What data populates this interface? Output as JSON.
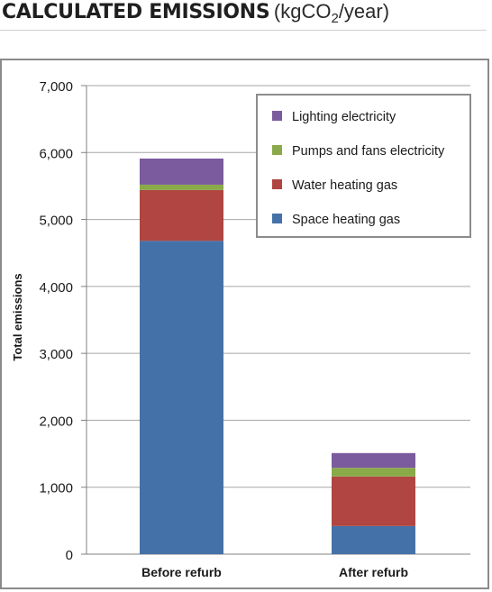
{
  "header": {
    "title_main": "CALCULATED EMISSIONS",
    "unit_prefix": "(kgCO",
    "unit_subscript": "2",
    "unit_suffix": "/year)"
  },
  "chart_data": {
    "type": "bar",
    "stacked": true,
    "categories": [
      "Before refurb",
      "After refurb"
    ],
    "series": [
      {
        "name": "Space heating gas",
        "values": [
          4680,
          420
        ],
        "color": "#4472a8"
      },
      {
        "name": "Water heating gas",
        "values": [
          760,
          740
        ],
        "color": "#b04541"
      },
      {
        "name": "Pumps and fans electricity",
        "values": [
          80,
          130
        ],
        "color": "#8aaa4a"
      },
      {
        "name": "Lighting electricity",
        "values": [
          390,
          220
        ],
        "color": "#7b5a9e"
      }
    ],
    "legend_order": [
      "Lighting electricity",
      "Pumps and fans electricity",
      "Water heating gas",
      "Space heating gas"
    ],
    "ylabel": "Total emissions",
    "xlabel": "",
    "ylim": [
      0,
      7000
    ],
    "yticks": [
      0,
      1000,
      2000,
      3000,
      4000,
      5000,
      6000,
      7000
    ],
    "ytick_labels": [
      "0",
      "1,000",
      "2,000",
      "3,000",
      "4,000",
      "5,000",
      "6,000",
      "7,000"
    ],
    "grid": true,
    "legend_position": "top-right"
  }
}
